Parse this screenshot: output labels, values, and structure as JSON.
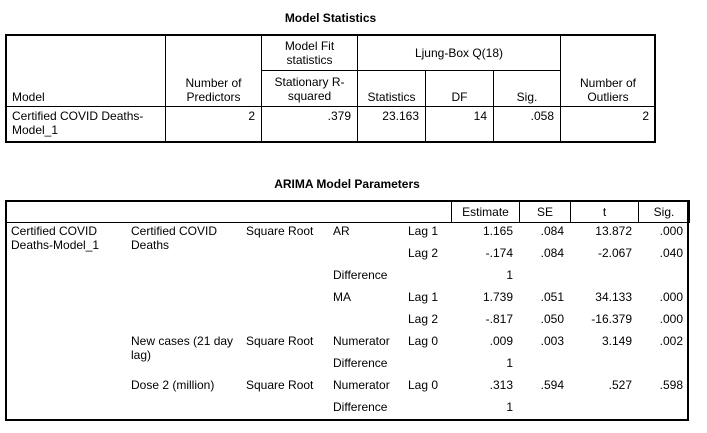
{
  "model_statistics": {
    "title": "Model Statistics",
    "headers": {
      "model": "Model",
      "predictors": "Number of Predictors",
      "fit_group": "Model Fit statistics",
      "stationary_r2": "Stationary R-squared",
      "ljung_group": "Ljung-Box Q(18)",
      "statistics": "Statistics",
      "df": "DF",
      "sig": "Sig.",
      "outliers": "Number of Outliers"
    },
    "rows": [
      {
        "model": "Certified COVID Deaths-Model_1",
        "predictors": "2",
        "stationary_r2": ".379",
        "statistics": "23.163",
        "df": "14",
        "sig": ".058",
        "outliers": "2"
      }
    ]
  },
  "arima_parameters": {
    "title": "ARIMA Model Parameters",
    "headers": [
      "Estimate",
      "SE",
      "t",
      "Sig."
    ],
    "model": "Certified COVID Deaths-Model_1",
    "variables": [
      {
        "name": "Certified COVID Deaths",
        "transformation": "Square Root",
        "components": [
          {
            "name": "AR",
            "lags": [
              {
                "lag": "Lag 1",
                "estimate": "1.165",
                "se": ".084",
                "t": "13.872",
                "sig": ".000"
              },
              {
                "lag": "Lag 2",
                "estimate": "-.174",
                "se": ".084",
                "t": "-2.067",
                "sig": ".040"
              }
            ]
          },
          {
            "name": "Difference",
            "lags": [
              {
                "estimate": "1"
              }
            ]
          },
          {
            "name": "MA",
            "lags": [
              {
                "lag": "Lag 1",
                "estimate": "1.739",
                "se": ".051",
                "t": "34.133",
                "sig": ".000"
              },
              {
                "lag": "Lag 2",
                "estimate": "-.817",
                "se": ".050",
                "t": "-16.379",
                "sig": ".000"
              }
            ]
          }
        ]
      },
      {
        "name": "New cases (21 day lag)",
        "transformation": "Square Root",
        "components": [
          {
            "name": "Numerator",
            "lags": [
              {
                "lag": "Lag 0",
                "estimate": ".009",
                "se": ".003",
                "t": "3.149",
                "sig": ".002"
              }
            ]
          },
          {
            "name": "Difference",
            "lags": [
              {
                "estimate": "1"
              }
            ]
          }
        ]
      },
      {
        "name": "Dose 2 (million)",
        "transformation": "Square Root",
        "components": [
          {
            "name": "Numerator",
            "lags": [
              {
                "lag": "Lag 0",
                "estimate": ".313",
                "se": ".594",
                "t": ".527",
                "sig": ".598"
              }
            ]
          },
          {
            "name": "Difference",
            "lags": [
              {
                "estimate": "1"
              }
            ]
          }
        ]
      }
    ]
  }
}
